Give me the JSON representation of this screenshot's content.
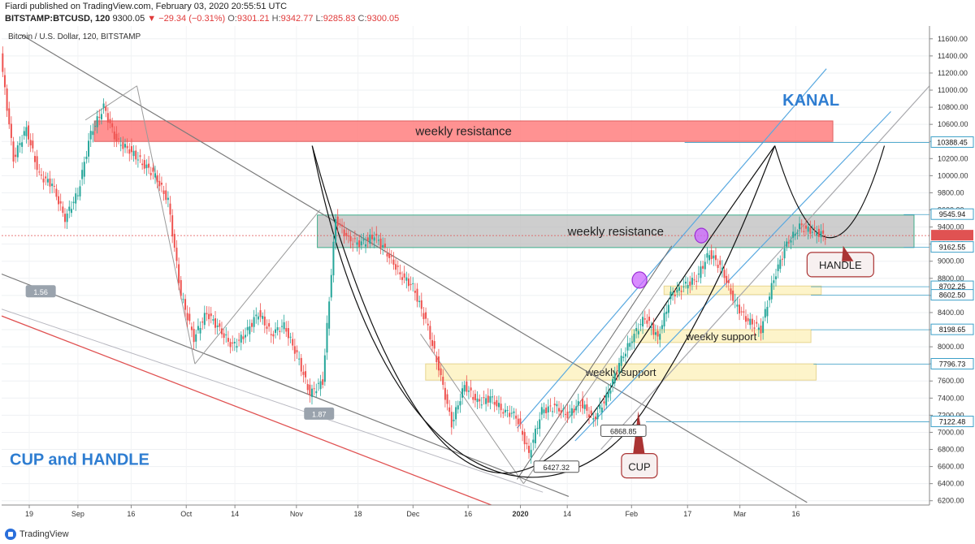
{
  "header": {
    "published": "Fiardi published on TradingView.com, February 03, 2020 20:55:51 UTC",
    "symbol": "BITSTAMP:BTCUSD, 120",
    "price": "9300.05",
    "change": "▼ −29.34 (−0.31%)",
    "ohlc": {
      "o": "9301.21",
      "h": "9342.77",
      "l": "9285.83",
      "c": "9300.05"
    }
  },
  "subtitle": "Bitcoin / U.S. Dollar, 120, BITSTAMP",
  "footer": {
    "brand": "TradingView"
  },
  "chart_data": {
    "type": "line",
    "x_ticks": [
      "19",
      "Sep",
      "16",
      "Oct",
      "14",
      "Nov",
      "18",
      "Dec",
      "16",
      "2020",
      "14",
      "Feb",
      "17",
      "Mar",
      "16"
    ],
    "y_ticks": [
      11600,
      11400,
      11200,
      11000,
      10800,
      10600,
      10400,
      10200,
      10000,
      9800,
      9600,
      9400,
      9200,
      9000,
      8800,
      8600,
      8400,
      8200,
      8000,
      7800,
      7600,
      7400,
      7200,
      7000,
      6800,
      6600,
      6400,
      6200
    ],
    "ylim": [
      6150,
      11750
    ],
    "price_series": [
      [
        0,
        11400
      ],
      [
        1,
        10200
      ],
      [
        2,
        10550
      ],
      [
        3,
        10000
      ],
      [
        4,
        9900
      ],
      [
        5,
        9500
      ],
      [
        6,
        9800
      ],
      [
        7,
        10500
      ],
      [
        8,
        10800
      ],
      [
        9,
        10400
      ],
      [
        10,
        10300
      ],
      [
        11,
        10150
      ],
      [
        12,
        10000
      ],
      [
        13,
        9700
      ],
      [
        14,
        8600
      ],
      [
        15,
        8100
      ],
      [
        16,
        8400
      ],
      [
        17,
        8200
      ],
      [
        18,
        8000
      ],
      [
        19,
        8150
      ],
      [
        20,
        8400
      ],
      [
        21,
        8150
      ],
      [
        22,
        8250
      ],
      [
        23,
        7900
      ],
      [
        24,
        7450
      ],
      [
        25,
        7600
      ],
      [
        26,
        9500
      ],
      [
        27,
        9250
      ],
      [
        28,
        9200
      ],
      [
        29,
        9300
      ],
      [
        30,
        9100
      ],
      [
        31,
        8850
      ],
      [
        32,
        8700
      ],
      [
        33,
        8300
      ],
      [
        34,
        7750
      ],
      [
        35,
        7100
      ],
      [
        36,
        7550
      ],
      [
        37,
        7350
      ],
      [
        38,
        7400
      ],
      [
        39,
        7250
      ],
      [
        40,
        7200
      ],
      [
        41,
        6750
      ],
      [
        42,
        7250
      ],
      [
        43,
        7300
      ],
      [
        44,
        7200
      ],
      [
        45,
        7350
      ],
      [
        46,
        7150
      ],
      [
        47,
        7400
      ],
      [
        48,
        7800
      ],
      [
        49,
        8100
      ],
      [
        50,
        8350
      ],
      [
        51,
        8100
      ],
      [
        52,
        8600
      ],
      [
        53,
        8700
      ],
      [
        54,
        8800
      ],
      [
        55,
        9100
      ],
      [
        56,
        8900
      ],
      [
        57,
        8500
      ],
      [
        58,
        8300
      ],
      [
        59,
        8200
      ],
      [
        60,
        8800
      ],
      [
        61,
        9200
      ],
      [
        62,
        9400
      ],
      [
        63,
        9350
      ],
      [
        64,
        9300
      ]
    ],
    "price_labels": [
      "10388.45",
      "9545.94",
      "9162.55",
      "8702.25",
      "8602.50",
      "8198.65",
      "7796.73",
      "7122.48"
    ],
    "zones": [
      {
        "label": "weekly resistance",
        "kind": "resistance-red",
        "x_from": 7.2,
        "x_to": 64.5,
        "y_from": 10400,
        "y_to": 10640
      },
      {
        "label": "weekly resistance",
        "kind": "resistance-gray",
        "x_from": 24.5,
        "x_to": 70.8,
        "y_from": 9160,
        "y_to": 9540
      },
      {
        "label": "",
        "kind": "support",
        "x_from": 51.4,
        "x_to": 63.6,
        "y_from": 8610,
        "y_to": 8710
      },
      {
        "label": "weekly support",
        "kind": "support",
        "x_from": 48.9,
        "x_to": 62.8,
        "y_from": 8050,
        "y_to": 8200
      },
      {
        "label": "weekly support",
        "kind": "support",
        "x_from": 32.9,
        "x_to": 63.2,
        "y_from": 7610,
        "y_to": 7800
      }
    ],
    "annotations": {
      "kanal": "KANAL",
      "cup_handle": "CUP and HANDLE",
      "handle": "HANDLE",
      "cup": "CUP",
      "fib1": "1.56",
      "fib2": "1.87",
      "low1": "6427.32",
      "low2": "6868.85"
    },
    "colors": {
      "red_zone": "#ff7f7f",
      "gray_zone": "#bdbdbd",
      "support_zone": "#fdf3c4",
      "up_candle": "#26a69a",
      "down_candle": "#ef5350",
      "channel": "#5aa9e0",
      "title_blue": "#2e7dd1"
    }
  }
}
